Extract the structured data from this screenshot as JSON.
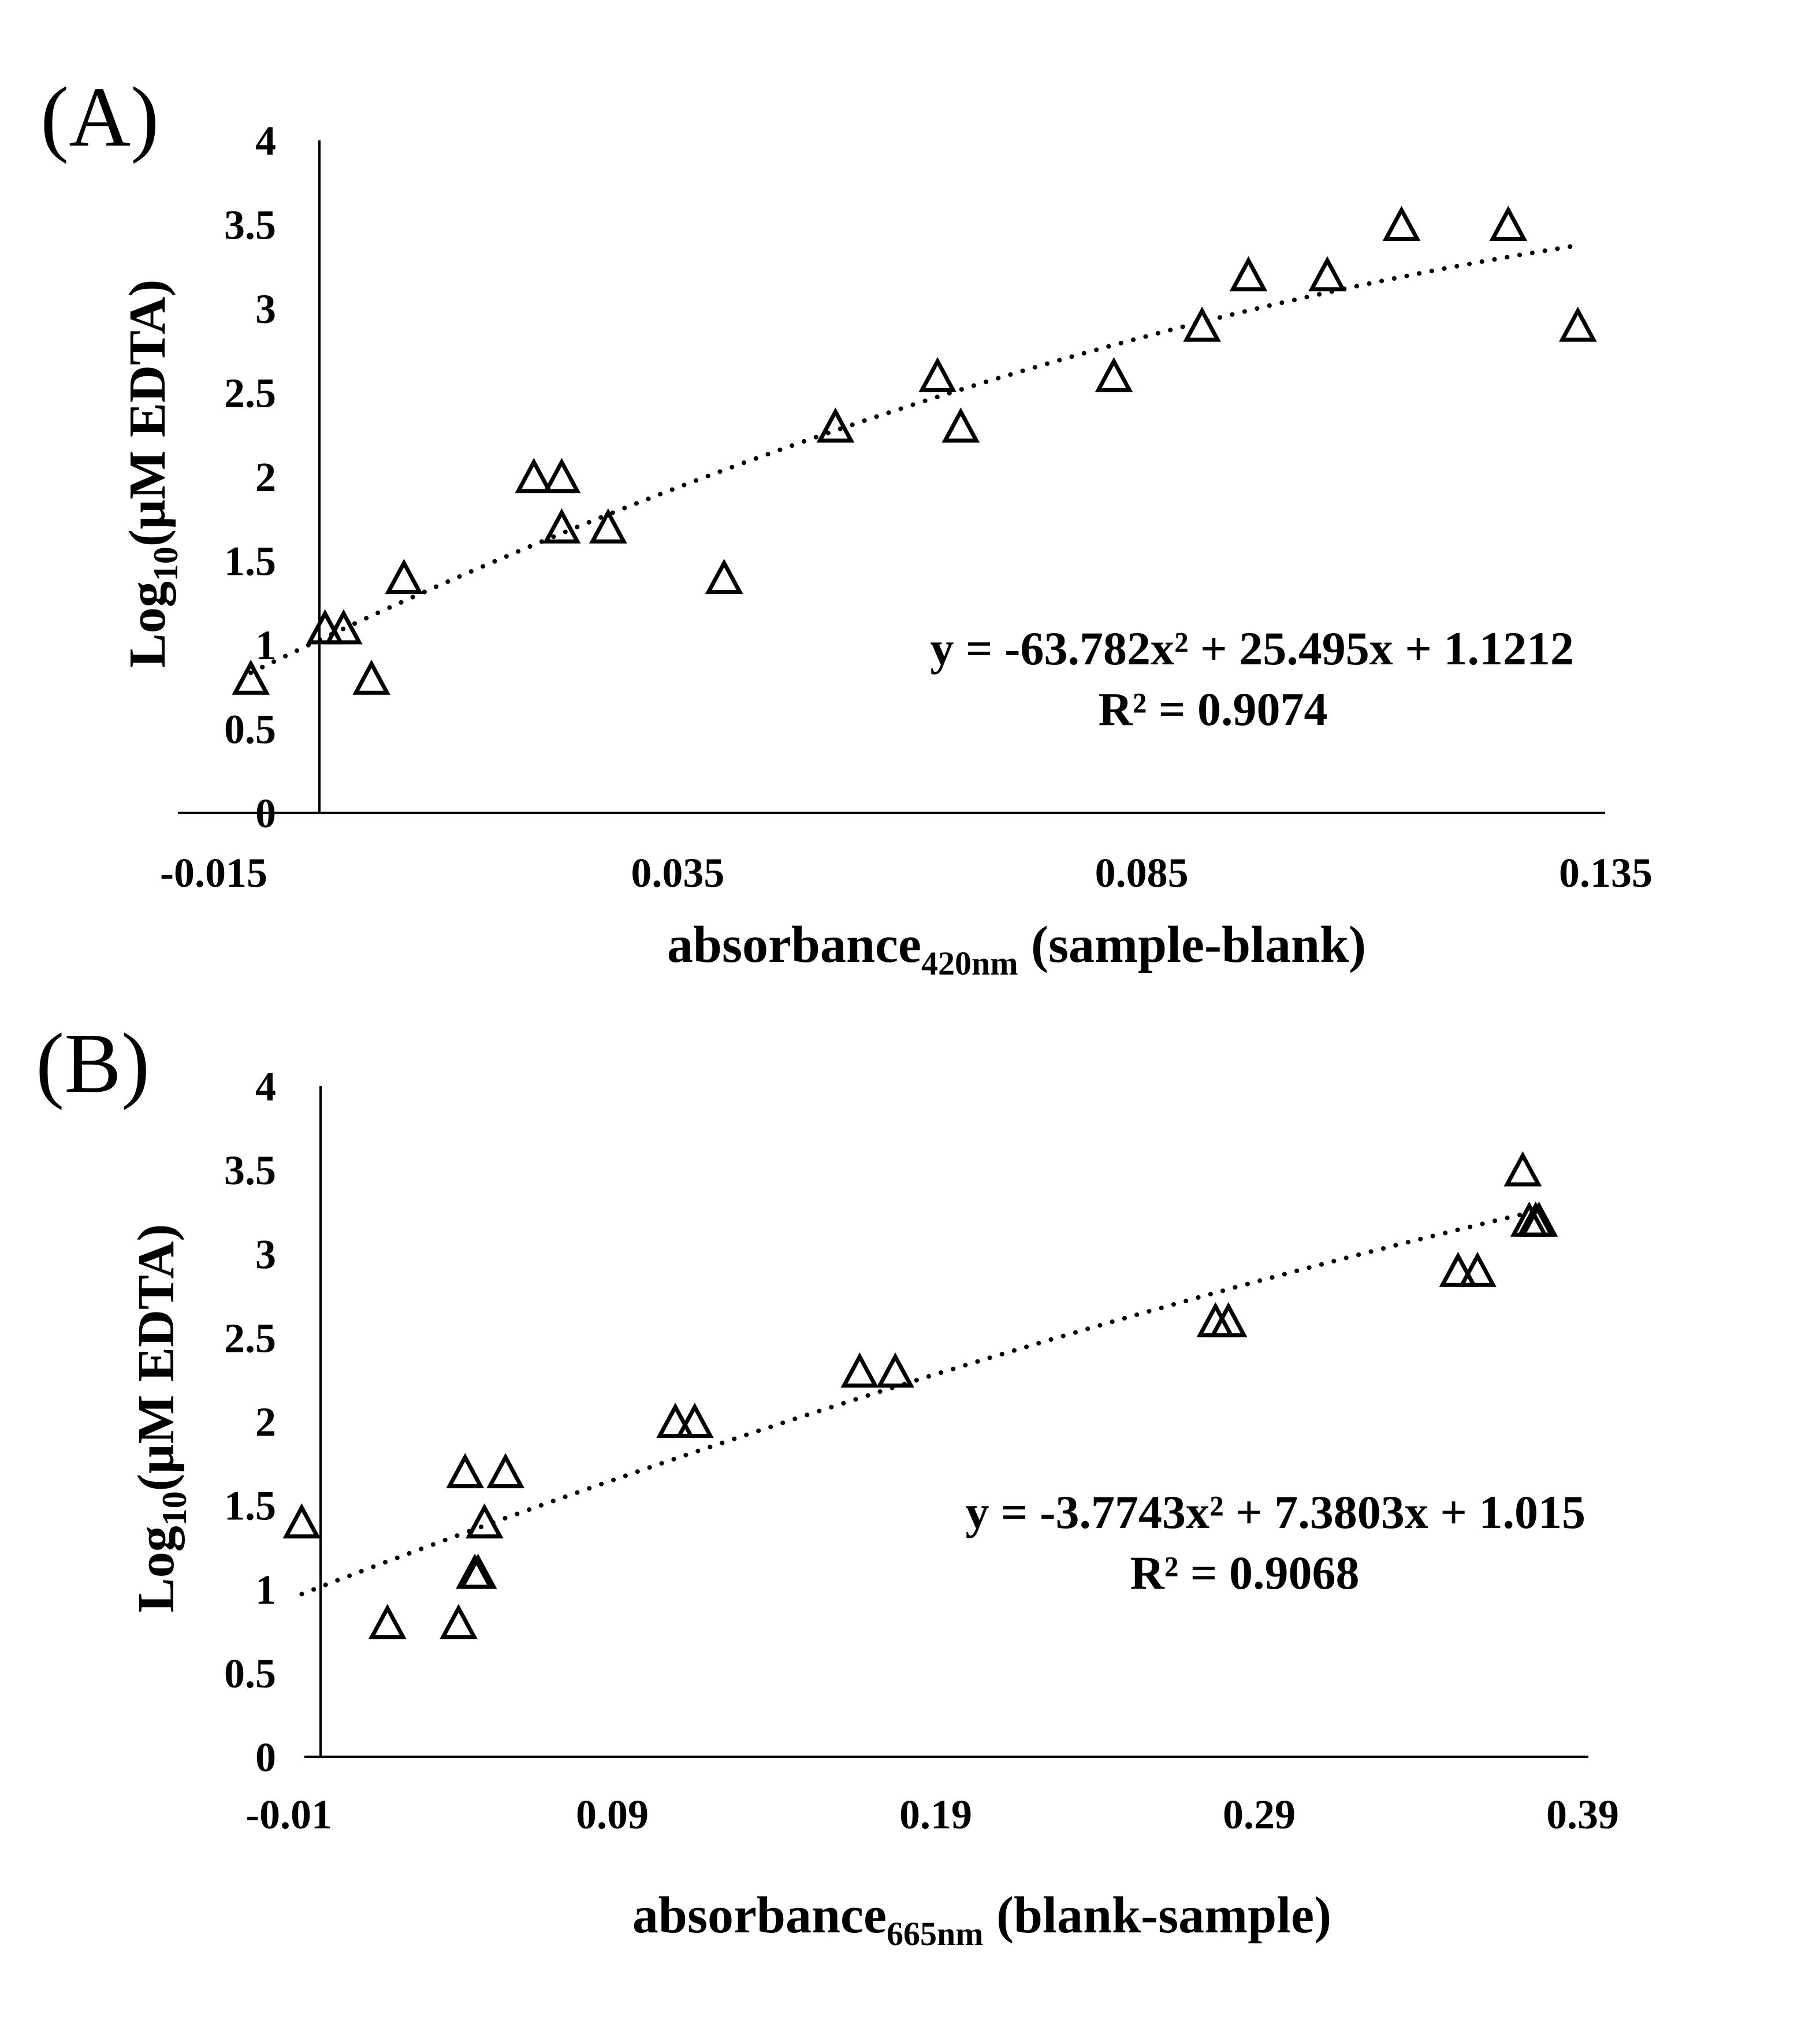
{
  "chart_data": [
    {
      "type": "scatter",
      "panel_label": "(A)",
      "xlabel": {
        "main": "absorbance",
        "sub": "420nm",
        "rest": " (sample-blank)"
      },
      "ylabel": {
        "main": "Log",
        "sub": "10",
        "rest": "(µM EDTA)"
      },
      "xlim": [
        -0.015,
        0.135
      ],
      "ylim": [
        0,
        4
      ],
      "x_axis_crosses": 0,
      "xtick_labels": [
        "-0.015",
        "0.035",
        "0.085",
        "0.135"
      ],
      "ytick_labels": [
        "0",
        "0.5",
        "1",
        "1.5",
        "2",
        "2.5",
        "3",
        "3.5",
        "4"
      ],
      "marker": "open-triangle",
      "points": [
        {
          "x": -0.011,
          "y": 0.8
        },
        {
          "x": -0.003,
          "y": 1.1
        },
        {
          "x": -0.001,
          "y": 1.1
        },
        {
          "x": 0.002,
          "y": 0.8
        },
        {
          "x": 0.0055,
          "y": 1.4
        },
        {
          "x": 0.0195,
          "y": 2.0
        },
        {
          "x": 0.0225,
          "y": 2.0
        },
        {
          "x": 0.0225,
          "y": 1.7
        },
        {
          "x": 0.0275,
          "y": 1.7
        },
        {
          "x": 0.04,
          "y": 1.4
        },
        {
          "x": 0.052,
          "y": 2.3
        },
        {
          "x": 0.063,
          "y": 2.6
        },
        {
          "x": 0.0655,
          "y": 2.3
        },
        {
          "x": 0.082,
          "y": 2.6
        },
        {
          "x": 0.0915,
          "y": 2.9
        },
        {
          "x": 0.0965,
          "y": 3.2
        },
        {
          "x": 0.105,
          "y": 3.2
        },
        {
          "x": 0.113,
          "y": 3.5
        },
        {
          "x": 0.1245,
          "y": 3.5
        },
        {
          "x": 0.132,
          "y": 2.9
        }
      ],
      "trendline": {
        "type": "polynomial",
        "order": 2,
        "a": -63.782,
        "b": 25.495,
        "c": 1.1212,
        "x_range": [
          -0.011,
          0.132
        ],
        "style": "dotted"
      },
      "equation_text": "y = -63.782x² + 25.495x + 1.1212",
      "r2_text": "R² = 0.9074"
    },
    {
      "type": "scatter",
      "panel_label": "(B)",
      "xlabel": {
        "main": "absorbance",
        "sub": "665nm",
        "rest": " (blank-sample)"
      },
      "ylabel": {
        "main": "Log",
        "sub": "10",
        "rest": "(µM EDTA)"
      },
      "xlim": [
        -0.01,
        0.39
      ],
      "ylim": [
        0,
        4
      ],
      "x_axis_crosses": 0,
      "xtick_labels": [
        "-0.01",
        "0.09",
        "0.19",
        "0.29",
        "0.39"
      ],
      "ytick_labels": [
        "0",
        "0.5",
        "1",
        "1.5",
        "2",
        "2.5",
        "3",
        "3.5",
        "4"
      ],
      "marker": "open-triangle",
      "points": [
        {
          "x": -0.006,
          "y": 1.4
        },
        {
          "x": 0.0205,
          "y": 0.8
        },
        {
          "x": 0.0425,
          "y": 0.8
        },
        {
          "x": 0.0445,
          "y": 1.7
        },
        {
          "x": 0.0475,
          "y": 1.1
        },
        {
          "x": 0.0485,
          "y": 1.1
        },
        {
          "x": 0.0505,
          "y": 1.4
        },
        {
          "x": 0.057,
          "y": 1.7
        },
        {
          "x": 0.1095,
          "y": 2.0
        },
        {
          "x": 0.1155,
          "y": 2.0
        },
        {
          "x": 0.1665,
          "y": 2.3
        },
        {
          "x": 0.1775,
          "y": 2.3
        },
        {
          "x": 0.2765,
          "y": 2.6
        },
        {
          "x": 0.2805,
          "y": 2.6
        },
        {
          "x": 0.3515,
          "y": 2.9
        },
        {
          "x": 0.3575,
          "y": 2.9
        },
        {
          "x": 0.3715,
          "y": 3.5
        },
        {
          "x": 0.3735,
          "y": 3.2
        },
        {
          "x": 0.3755,
          "y": 3.2
        },
        {
          "x": 0.3765,
          "y": 3.2
        }
      ],
      "trendline": {
        "type": "polynomial",
        "order": 2,
        "a": -3.7743,
        "b": 7.3803,
        "c": 1.015,
        "x_range": [
          -0.006,
          0.3765
        ],
        "style": "dotted"
      },
      "equation_text": "y = -3.7743x² + 7.3803x + 1.015",
      "r2_text": "R² = 0.9068"
    }
  ]
}
